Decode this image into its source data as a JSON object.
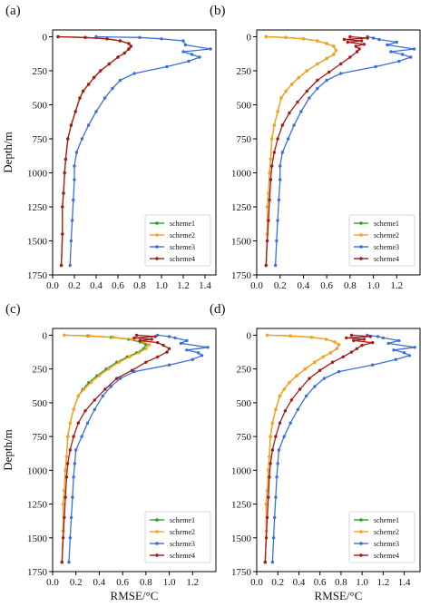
{
  "chart_data": [
    {
      "type": "line",
      "panel_label": "(a)",
      "xlabel": "",
      "ylabel": "Depth/m",
      "xlim": [
        0,
        1.5
      ],
      "ylim": [
        1750,
        -50
      ],
      "xticks": [
        "0.0",
        "0.2",
        "0.4",
        "0.6",
        "0.8",
        "1.0",
        "1.2",
        "1.4"
      ],
      "yticks": [
        "0",
        "250",
        "500",
        "750",
        "1000",
        "1250",
        "1500",
        "1750"
      ],
      "legend": "lower-right",
      "series": [
        {
          "name": "scheme1",
          "color": "#2ca02c",
          "x": [
            0.05,
            0.3,
            0.5,
            0.62,
            0.7,
            0.72,
            0.7,
            0.66,
            0.6,
            0.52,
            0.44,
            0.38,
            0.33,
            0.28,
            0.25,
            0.21,
            0.17,
            0.14,
            0.12,
            0.11,
            0.1,
            0.09,
            0.09,
            0.08
          ],
          "y": [
            0,
            5,
            15,
            30,
            50,
            70,
            90,
            120,
            150,
            200,
            250,
            300,
            350,
            400,
            450,
            550,
            650,
            750,
            900,
            1000,
            1150,
            1250,
            1450,
            1680
          ]
        },
        {
          "name": "scheme2",
          "color": "#ff9f1c",
          "x": [
            0.05,
            0.3,
            0.5,
            0.62,
            0.7,
            0.72,
            0.7,
            0.66,
            0.6,
            0.52,
            0.44,
            0.38,
            0.33,
            0.28,
            0.25,
            0.21,
            0.17,
            0.14,
            0.12,
            0.11,
            0.1,
            0.09,
            0.09,
            0.08
          ],
          "y": [
            0,
            5,
            15,
            30,
            50,
            70,
            90,
            120,
            150,
            200,
            250,
            300,
            350,
            400,
            450,
            550,
            650,
            750,
            900,
            1000,
            1150,
            1250,
            1450,
            1680
          ]
        },
        {
          "name": "scheme3",
          "color": "#3a6fd8",
          "x": [
            0.4,
            0.8,
            1.0,
            1.2,
            1.22,
            1.45,
            1.2,
            1.28,
            1.35,
            1.25,
            1.05,
            0.75,
            0.62,
            0.55,
            0.48,
            0.4,
            0.33,
            0.27,
            0.22,
            0.2,
            0.2,
            0.19,
            0.18,
            0.17,
            0.16
          ],
          "y": [
            0,
            5,
            15,
            30,
            60,
            90,
            110,
            130,
            150,
            180,
            220,
            270,
            320,
            380,
            450,
            550,
            650,
            750,
            850,
            950,
            1050,
            1200,
            1350,
            1500,
            1680
          ]
        },
        {
          "name": "scheme4",
          "color": "#a31a1a",
          "x": [
            0.05,
            0.3,
            0.5,
            0.62,
            0.7,
            0.72,
            0.7,
            0.66,
            0.6,
            0.52,
            0.44,
            0.38,
            0.33,
            0.28,
            0.25,
            0.21,
            0.17,
            0.14,
            0.12,
            0.11,
            0.1,
            0.09,
            0.09,
            0.08
          ],
          "y": [
            0,
            5,
            15,
            30,
            50,
            70,
            90,
            120,
            150,
            200,
            250,
            300,
            350,
            400,
            450,
            550,
            650,
            750,
            900,
            1000,
            1150,
            1250,
            1450,
            1680
          ]
        }
      ]
    },
    {
      "type": "line",
      "panel_label": "(b)",
      "xlabel": "",
      "ylabel": "",
      "xlim": [
        0,
        1.4
      ],
      "ylim": [
        1750,
        -50
      ],
      "xticks": [
        "0.0",
        "0.2",
        "0.4",
        "0.6",
        "0.8",
        "1.0",
        "1.2"
      ],
      "yticks": [
        "0",
        "250",
        "500",
        "750",
        "1000",
        "1250",
        "1500",
        "1750"
      ],
      "legend": "lower-right",
      "series": [
        {
          "name": "scheme1",
          "color": "#2ca02c",
          "x": [
            0.08,
            0.25,
            0.4,
            0.52,
            0.6,
            0.66,
            0.68,
            0.66,
            0.6,
            0.52,
            0.43,
            0.36,
            0.3,
            0.25,
            0.21,
            0.18,
            0.15,
            0.13,
            0.12,
            0.11,
            0.1,
            0.09,
            0.09,
            0.08
          ],
          "y": [
            0,
            5,
            15,
            30,
            50,
            70,
            100,
            130,
            160,
            200,
            250,
            300,
            350,
            400,
            450,
            550,
            650,
            750,
            900,
            1000,
            1150,
            1250,
            1450,
            1680
          ]
        },
        {
          "name": "scheme2",
          "color": "#ff9f1c",
          "x": [
            0.08,
            0.25,
            0.4,
            0.52,
            0.6,
            0.66,
            0.68,
            0.66,
            0.6,
            0.52,
            0.43,
            0.36,
            0.3,
            0.25,
            0.21,
            0.18,
            0.15,
            0.13,
            0.12,
            0.11,
            0.1,
            0.09,
            0.09,
            0.08
          ],
          "y": [
            0,
            5,
            15,
            30,
            50,
            70,
            100,
            130,
            160,
            200,
            250,
            300,
            350,
            400,
            450,
            550,
            650,
            750,
            900,
            1000,
            1150,
            1250,
            1450,
            1680
          ]
        },
        {
          "name": "scheme3",
          "color": "#3a6fd8",
          "x": [
            0.95,
            1.0,
            1.05,
            1.2,
            1.12,
            1.35,
            1.15,
            1.25,
            1.32,
            1.22,
            1.02,
            0.72,
            0.6,
            0.52,
            0.45,
            0.38,
            0.32,
            0.27,
            0.22,
            0.2,
            0.2,
            0.19,
            0.18,
            0.17,
            0.16
          ],
          "y": [
            0,
            10,
            20,
            40,
            60,
            90,
            110,
            130,
            150,
            180,
            220,
            270,
            320,
            380,
            450,
            550,
            650,
            750,
            850,
            950,
            1050,
            1200,
            1350,
            1500,
            1680
          ]
        },
        {
          "name": "scheme4",
          "color": "#a31a1a",
          "x": [
            0.8,
            0.95,
            0.75,
            0.9,
            0.78,
            0.92,
            0.85,
            0.88,
            0.86,
            0.8,
            0.72,
            0.62,
            0.52,
            0.43,
            0.35,
            0.28,
            0.22,
            0.18,
            0.15,
            0.13,
            0.12,
            0.11,
            0.1,
            0.09,
            0.08
          ],
          "y": [
            0,
            10,
            20,
            30,
            40,
            55,
            70,
            90,
            110,
            150,
            200,
            260,
            320,
            400,
            480,
            560,
            650,
            750,
            850,
            950,
            1050,
            1200,
            1350,
            1500,
            1680
          ]
        }
      ]
    },
    {
      "type": "line",
      "panel_label": "(c)",
      "xlabel": "RMSE/°C",
      "ylabel": "Depth/m",
      "xlim": [
        0,
        1.4
      ],
      "ylim": [
        1750,
        -50
      ],
      "xticks": [
        "0.0",
        "0.2",
        "0.4",
        "0.6",
        "0.8",
        "1.0",
        "1.2"
      ],
      "yticks": [
        "0",
        "250",
        "500",
        "750",
        "1000",
        "1250",
        "1500",
        "1750"
      ],
      "legend": "lower-right",
      "series": [
        {
          "name": "scheme1",
          "color": "#2ca02c",
          "x": [
            0.1,
            0.3,
            0.5,
            0.65,
            0.75,
            0.8,
            0.78,
            0.72,
            0.64,
            0.55,
            0.46,
            0.38,
            0.31,
            0.26,
            0.22,
            0.18,
            0.15,
            0.13,
            0.12,
            0.11,
            0.1,
            0.09,
            0.09,
            0.08
          ],
          "y": [
            0,
            5,
            15,
            30,
            50,
            70,
            100,
            130,
            160,
            200,
            250,
            300,
            350,
            400,
            450,
            550,
            650,
            750,
            900,
            1000,
            1150,
            1250,
            1450,
            1680
          ]
        },
        {
          "name": "scheme2",
          "color": "#ff9f1c",
          "x": [
            0.1,
            0.32,
            0.52,
            0.68,
            0.78,
            0.83,
            0.8,
            0.74,
            0.66,
            0.57,
            0.48,
            0.4,
            0.33,
            0.27,
            0.22,
            0.18,
            0.15,
            0.13,
            0.12,
            0.11,
            0.1,
            0.09,
            0.09,
            0.08
          ],
          "y": [
            0,
            5,
            15,
            30,
            50,
            70,
            100,
            130,
            160,
            200,
            250,
            300,
            350,
            400,
            450,
            550,
            650,
            750,
            900,
            1000,
            1150,
            1250,
            1450,
            1680
          ]
        },
        {
          "name": "scheme3",
          "color": "#3a6fd8",
          "x": [
            0.9,
            1.0,
            1.05,
            1.15,
            1.1,
            1.33,
            1.15,
            1.25,
            1.28,
            1.2,
            1.0,
            0.7,
            0.58,
            0.5,
            0.43,
            0.36,
            0.3,
            0.25,
            0.2,
            0.19,
            0.18,
            0.17,
            0.16,
            0.15,
            0.14
          ],
          "y": [
            0,
            10,
            20,
            40,
            60,
            90,
            110,
            130,
            150,
            180,
            220,
            270,
            320,
            380,
            450,
            550,
            650,
            750,
            850,
            950,
            1050,
            1200,
            1350,
            1500,
            1680
          ]
        },
        {
          "name": "scheme4",
          "color": "#a31a1a",
          "x": [
            0.72,
            0.88,
            0.7,
            0.85,
            0.75,
            0.9,
            0.95,
            1.0,
            0.98,
            0.9,
            0.8,
            0.68,
            0.55,
            0.45,
            0.36,
            0.28,
            0.22,
            0.18,
            0.15,
            0.13,
            0.12,
            0.11,
            0.1,
            0.09,
            0.08
          ],
          "y": [
            0,
            10,
            20,
            30,
            40,
            55,
            75,
            100,
            125,
            160,
            200,
            260,
            320,
            400,
            480,
            560,
            650,
            750,
            850,
            950,
            1050,
            1200,
            1350,
            1500,
            1680
          ]
        }
      ]
    },
    {
      "type": "line",
      "panel_label": "(d)",
      "xlabel": "RMSE/°C",
      "ylabel": "",
      "xlim": [
        0,
        1.55
      ],
      "ylim": [
        1750,
        -50
      ],
      "xticks": [
        "0.0",
        "0.2",
        "0.4",
        "0.6",
        "0.8",
        "1.0",
        "1.2",
        "1.4"
      ],
      "yticks": [
        "0",
        "250",
        "500",
        "750",
        "1000",
        "1250",
        "1500",
        "1750"
      ],
      "legend": "lower-right",
      "series": [
        {
          "name": "scheme1",
          "color": "#2ca02c",
          "x": [
            0.1,
            0.32,
            0.52,
            0.66,
            0.74,
            0.78,
            0.76,
            0.7,
            0.63,
            0.55,
            0.46,
            0.38,
            0.31,
            0.26,
            0.22,
            0.18,
            0.15,
            0.13,
            0.12,
            0.11,
            0.1,
            0.09,
            0.09,
            0.08
          ],
          "y": [
            0,
            5,
            15,
            30,
            50,
            70,
            100,
            130,
            160,
            200,
            250,
            300,
            350,
            400,
            450,
            550,
            650,
            750,
            900,
            1000,
            1150,
            1250,
            1450,
            1680
          ]
        },
        {
          "name": "scheme2",
          "color": "#ff9f1c",
          "x": [
            0.1,
            0.32,
            0.52,
            0.66,
            0.74,
            0.78,
            0.76,
            0.7,
            0.63,
            0.55,
            0.46,
            0.38,
            0.31,
            0.26,
            0.22,
            0.18,
            0.15,
            0.13,
            0.12,
            0.11,
            0.1,
            0.09,
            0.09,
            0.08
          ],
          "y": [
            0,
            5,
            15,
            30,
            50,
            70,
            100,
            130,
            160,
            200,
            250,
            300,
            350,
            400,
            450,
            550,
            650,
            750,
            900,
            1000,
            1150,
            1250,
            1450,
            1680
          ]
        },
        {
          "name": "scheme3",
          "color": "#3a6fd8",
          "x": [
            1.05,
            1.15,
            1.2,
            1.35,
            1.25,
            1.5,
            1.3,
            1.4,
            1.45,
            1.32,
            1.1,
            0.78,
            0.64,
            0.55,
            0.47,
            0.39,
            0.32,
            0.26,
            0.21,
            0.2,
            0.19,
            0.18,
            0.17,
            0.16,
            0.15
          ],
          "y": [
            0,
            10,
            20,
            40,
            60,
            90,
            110,
            130,
            150,
            180,
            220,
            270,
            320,
            380,
            450,
            550,
            650,
            750,
            850,
            950,
            1050,
            1200,
            1350,
            1500,
            1680
          ]
        },
        {
          "name": "scheme4",
          "color": "#a31a1a",
          "x": [
            0.9,
            1.08,
            0.85,
            1.02,
            0.92,
            1.1,
            1.0,
            0.95,
            0.9,
            0.82,
            0.72,
            0.6,
            0.5,
            0.41,
            0.33,
            0.27,
            0.22,
            0.18,
            0.15,
            0.13,
            0.12,
            0.11,
            0.1,
            0.09,
            0.08
          ],
          "y": [
            0,
            10,
            20,
            30,
            40,
            55,
            75,
            100,
            125,
            160,
            200,
            260,
            320,
            400,
            480,
            560,
            650,
            750,
            850,
            950,
            1050,
            1200,
            1350,
            1500,
            1680
          ]
        }
      ]
    }
  ]
}
